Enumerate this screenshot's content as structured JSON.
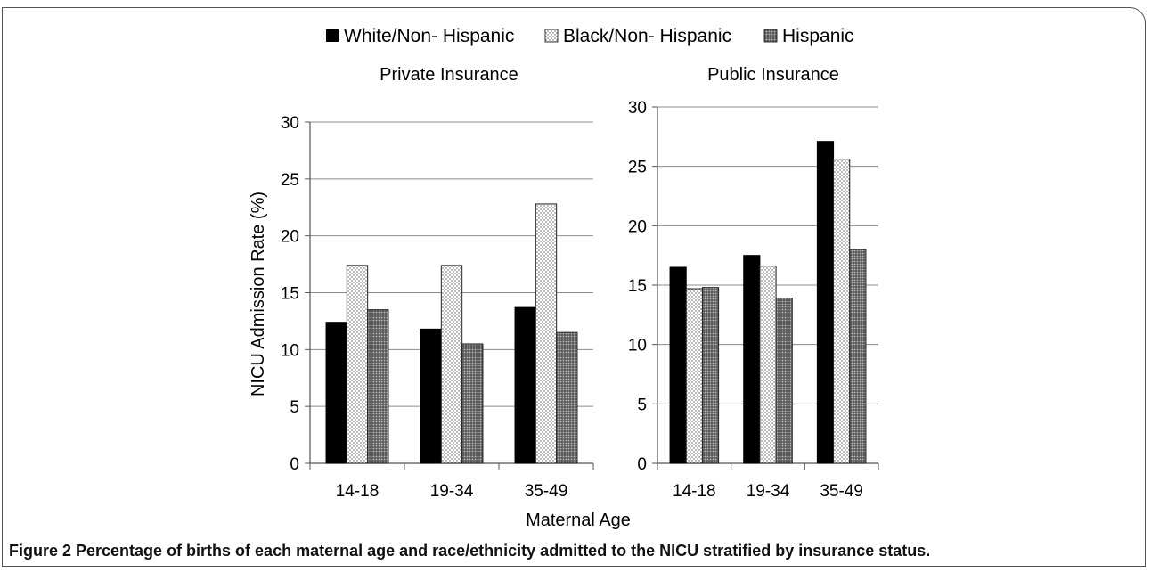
{
  "chart_data": [
    {
      "type": "bar",
      "title": "Private Insurance",
      "categories": [
        "14-18",
        "19-34",
        "35-49"
      ],
      "ylabel": "NICU Admission Rate (%)",
      "ylim": [
        0,
        30
      ],
      "yticks": [
        0,
        5,
        10,
        15,
        20,
        25,
        30
      ],
      "grid": true,
      "series": [
        {
          "name": "White/Non- Hispanic",
          "values": [
            12.4,
            11.8,
            13.7
          ]
        },
        {
          "name": "Black/Non- Hispanic",
          "values": [
            17.4,
            17.4,
            22.8
          ]
        },
        {
          "name": "Hispanic",
          "values": [
            13.5,
            10.5,
            11.5
          ]
        }
      ]
    },
    {
      "type": "bar",
      "title": "Public Insurance",
      "categories": [
        "14-18",
        "19-34",
        "35-49"
      ],
      "ylim": [
        0,
        30
      ],
      "yticks": [
        0,
        5,
        10,
        15,
        20,
        25,
        30
      ],
      "grid": true,
      "series": [
        {
          "name": "White/Non- Hispanic",
          "values": [
            16.5,
            17.5,
            27.1
          ]
        },
        {
          "name": "Black/Non- Hispanic",
          "values": [
            14.7,
            16.6,
            25.6
          ]
        },
        {
          "name": "Hispanic",
          "values": [
            14.8,
            13.9,
            18.0
          ]
        }
      ]
    }
  ],
  "legend": {
    "position": "top",
    "items": [
      {
        "label": "White/Non- Hispanic",
        "style": "solid-black"
      },
      {
        "label": "Black/Non- Hispanic",
        "style": "dotted-light"
      },
      {
        "label": "Hispanic",
        "style": "dotted-dark"
      }
    ]
  },
  "xlabel": "Maternal Age",
  "caption": {
    "label": "Figure 2",
    "text": " Percentage of births of each maternal age and race/ethnicity admitted to the NICU stratified by insurance status."
  }
}
